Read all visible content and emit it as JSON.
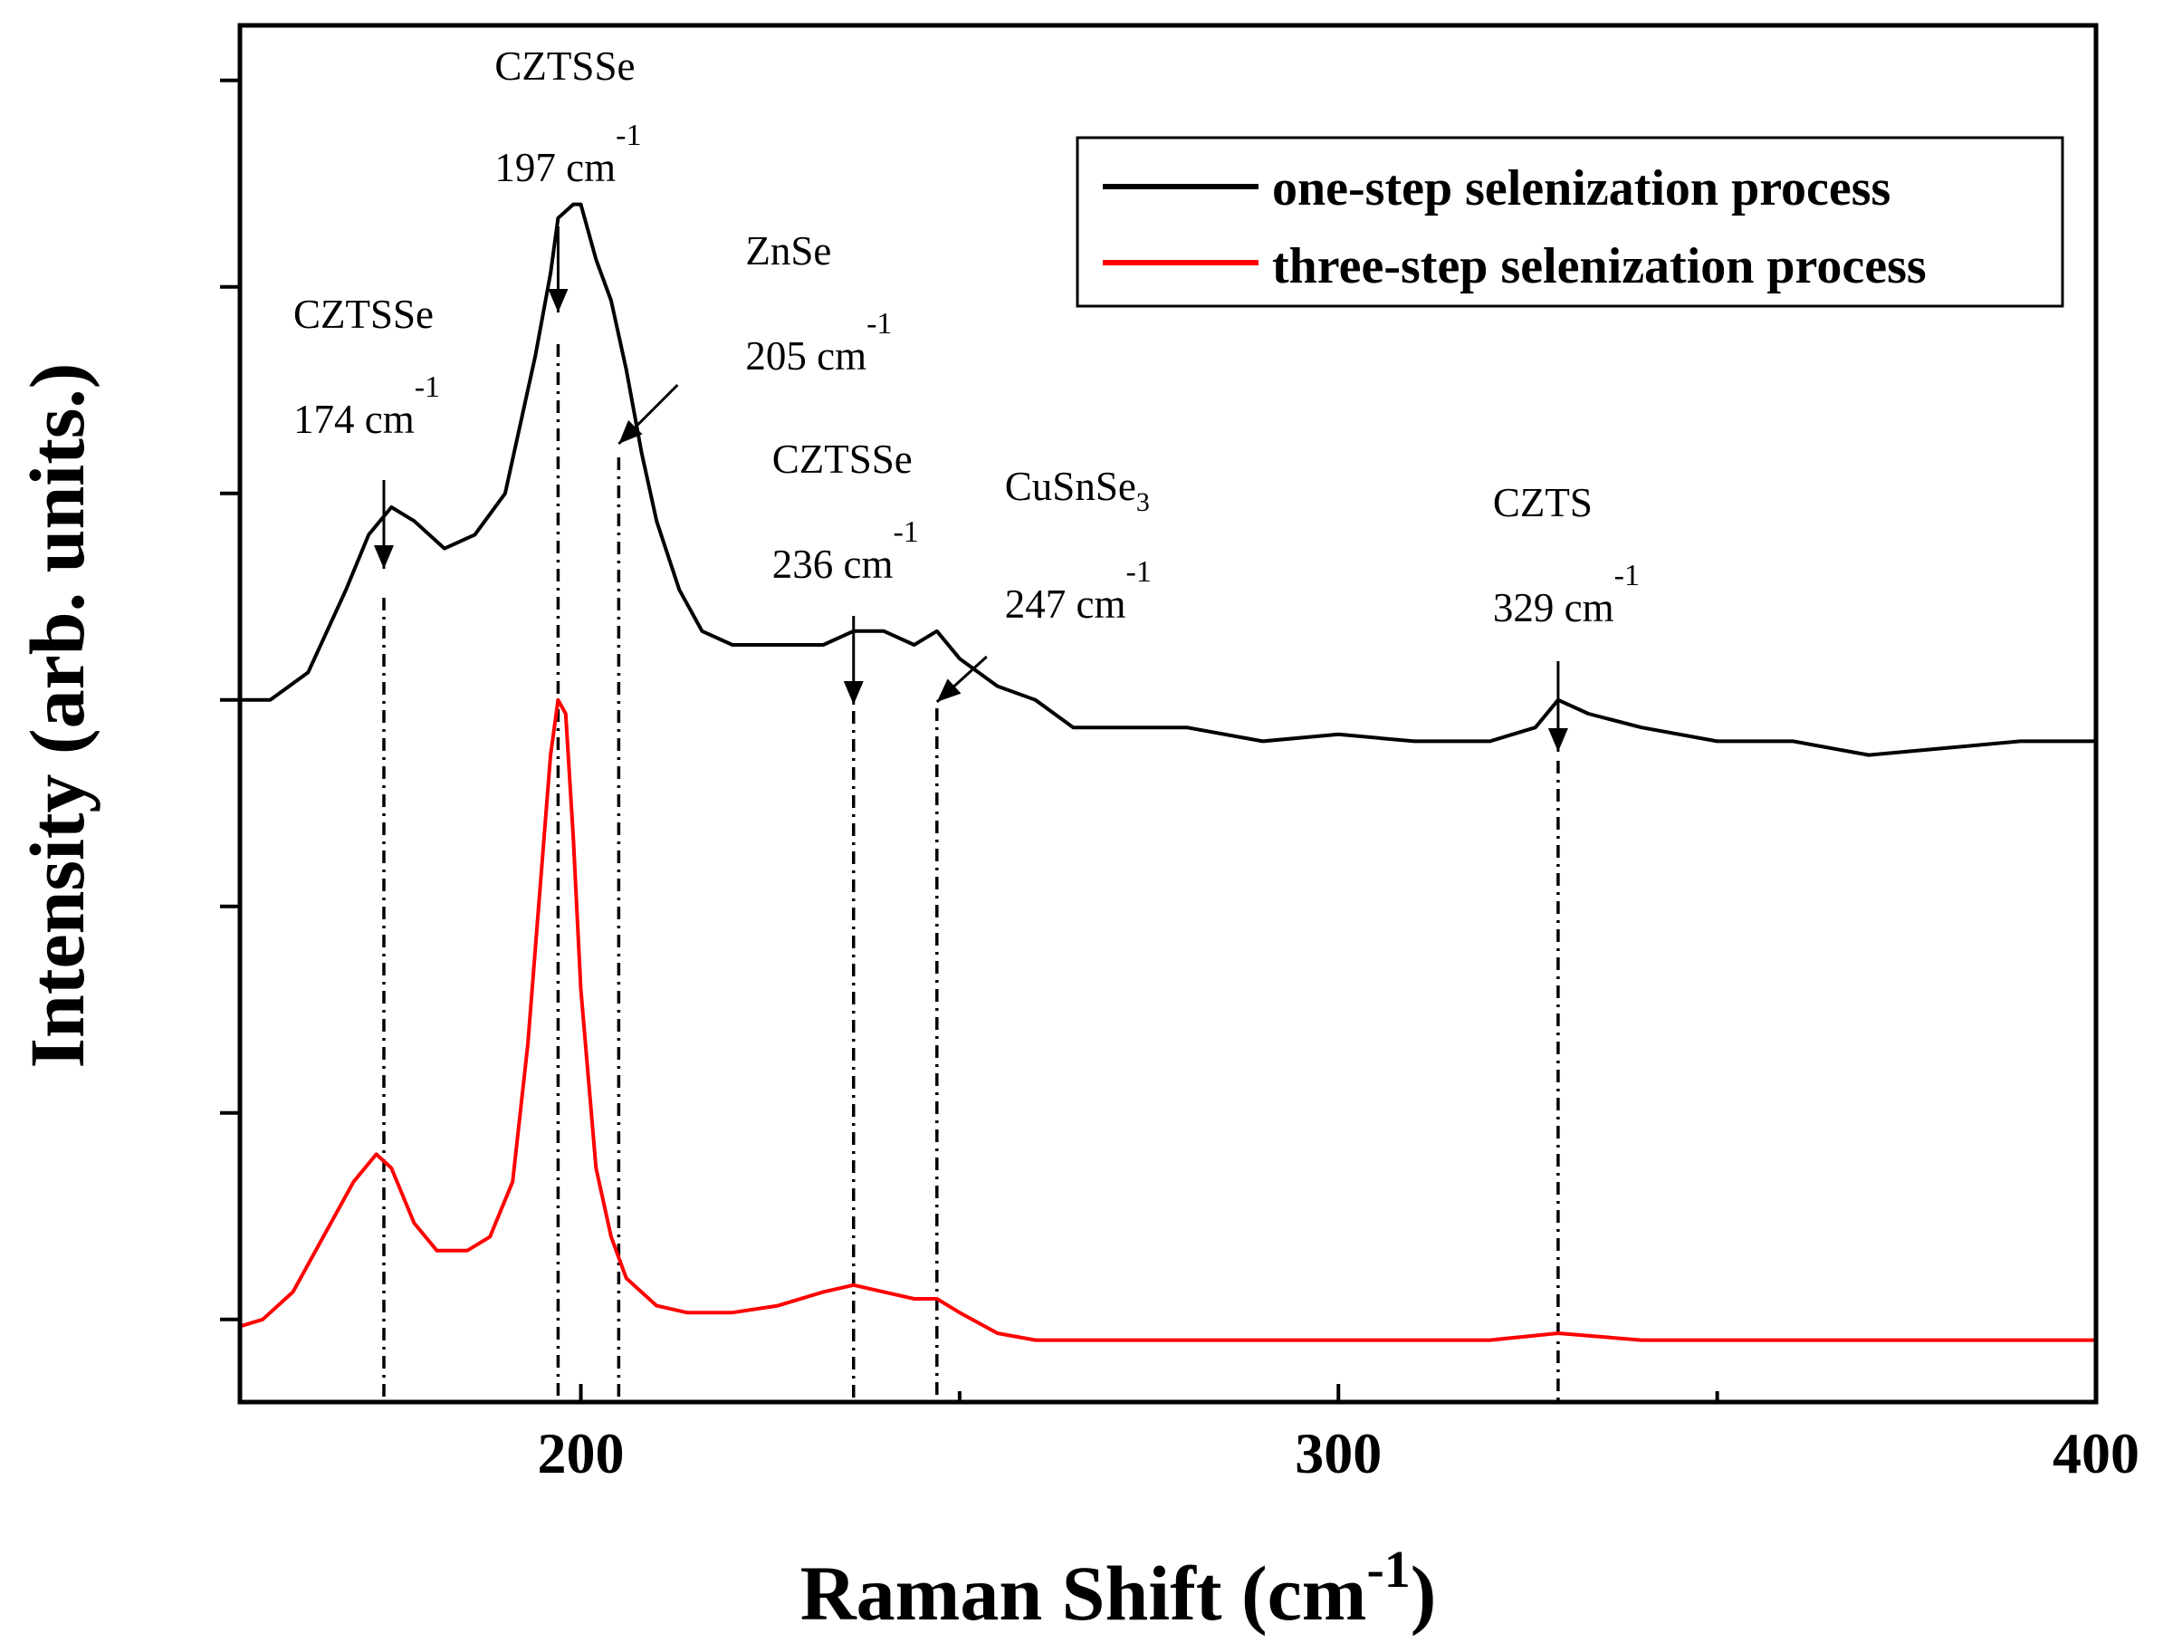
{
  "chart_data": {
    "type": "line",
    "xlabel_main": "Raman Shift (cm",
    "xlabel_sup": "-1",
    "xlabel_close": ")",
    "ylabel": "Intensity (arb. units.)",
    "xlim": [
      155,
      400
    ],
    "ylim": [
      0,
      100
    ],
    "xticks": [
      200,
      300,
      400
    ],
    "xtick_labels": [
      "200",
      "300",
      "400"
    ],
    "minor_xticks": [
      250,
      350
    ],
    "yticks": [
      6,
      21,
      36,
      51,
      66,
      81,
      96
    ],
    "legend_position": "top-right",
    "series": [
      {
        "name": "one-step selenization process",
        "color": "#000000",
        "x": [
          155,
          159,
          164,
          169,
          172,
          175,
          178,
          182,
          186,
          190,
          194,
          196,
          197,
          199,
          200,
          202,
          204,
          206,
          208,
          210,
          213,
          216,
          220,
          224,
          228,
          232,
          236,
          240,
          244,
          247,
          250,
          255,
          260,
          265,
          270,
          275,
          280,
          290,
          300,
          310,
          320,
          326,
          329,
          333,
          340,
          350,
          360,
          370,
          380,
          390,
          400
        ],
        "y": [
          51,
          51,
          53,
          59,
          63,
          65,
          64,
          62,
          63,
          66,
          76,
          82,
          86,
          87,
          87,
          83,
          80,
          75,
          69,
          64,
          59,
          56,
          55,
          55,
          55,
          55,
          56,
          56,
          55,
          56,
          54,
          52,
          51,
          49,
          49,
          49,
          49,
          48,
          48.5,
          48,
          48,
          49,
          51,
          50,
          49,
          48,
          48,
          47,
          47.5,
          48,
          48
        ]
      },
      {
        "name": "three-step selenization process",
        "color": "#ff0000",
        "x": [
          155,
          158,
          162,
          166,
          170,
          173,
          175,
          178,
          181,
          185,
          188,
          191,
          193,
          195,
          196,
          197,
          198,
          199,
          200,
          202,
          204,
          206,
          210,
          214,
          220,
          226,
          232,
          236,
          240,
          244,
          247,
          250,
          255,
          260,
          270,
          280,
          300,
          320,
          329,
          340,
          360,
          380,
          400
        ],
        "y": [
          5.5,
          6,
          8,
          12,
          16,
          18,
          17,
          13,
          11,
          11,
          12,
          16,
          26,
          40,
          47,
          51,
          50,
          41,
          30,
          17,
          12,
          9,
          7,
          6.5,
          6.5,
          7,
          8,
          8.5,
          8,
          7.5,
          7.5,
          6.5,
          5,
          4.5,
          4.5,
          4.5,
          4.5,
          4.5,
          5,
          4.5,
          4.5,
          4.5,
          4.5
        ]
      }
    ],
    "markers": [
      {
        "label": "CZTSSe",
        "value": "174 cm",
        "unit_sup": "-1",
        "x": 174
      },
      {
        "label": "CZTSSe",
        "value": "197 cm",
        "unit_sup": "-1",
        "x": 197
      },
      {
        "label": "ZnSe",
        "value": "205 cm",
        "unit_sup": "-1",
        "x": 205
      },
      {
        "label": "CZTSSe",
        "value": "236 cm",
        "unit_sup": "-1",
        "x": 236
      },
      {
        "label": "CuSnSe",
        "label_sub": "3",
        "value": "247 cm",
        "unit_sup": "-1",
        "x": 247
      },
      {
        "label": "CZTS",
        "value": "329 cm",
        "unit_sup": "-1",
        "x": 329
      }
    ]
  }
}
